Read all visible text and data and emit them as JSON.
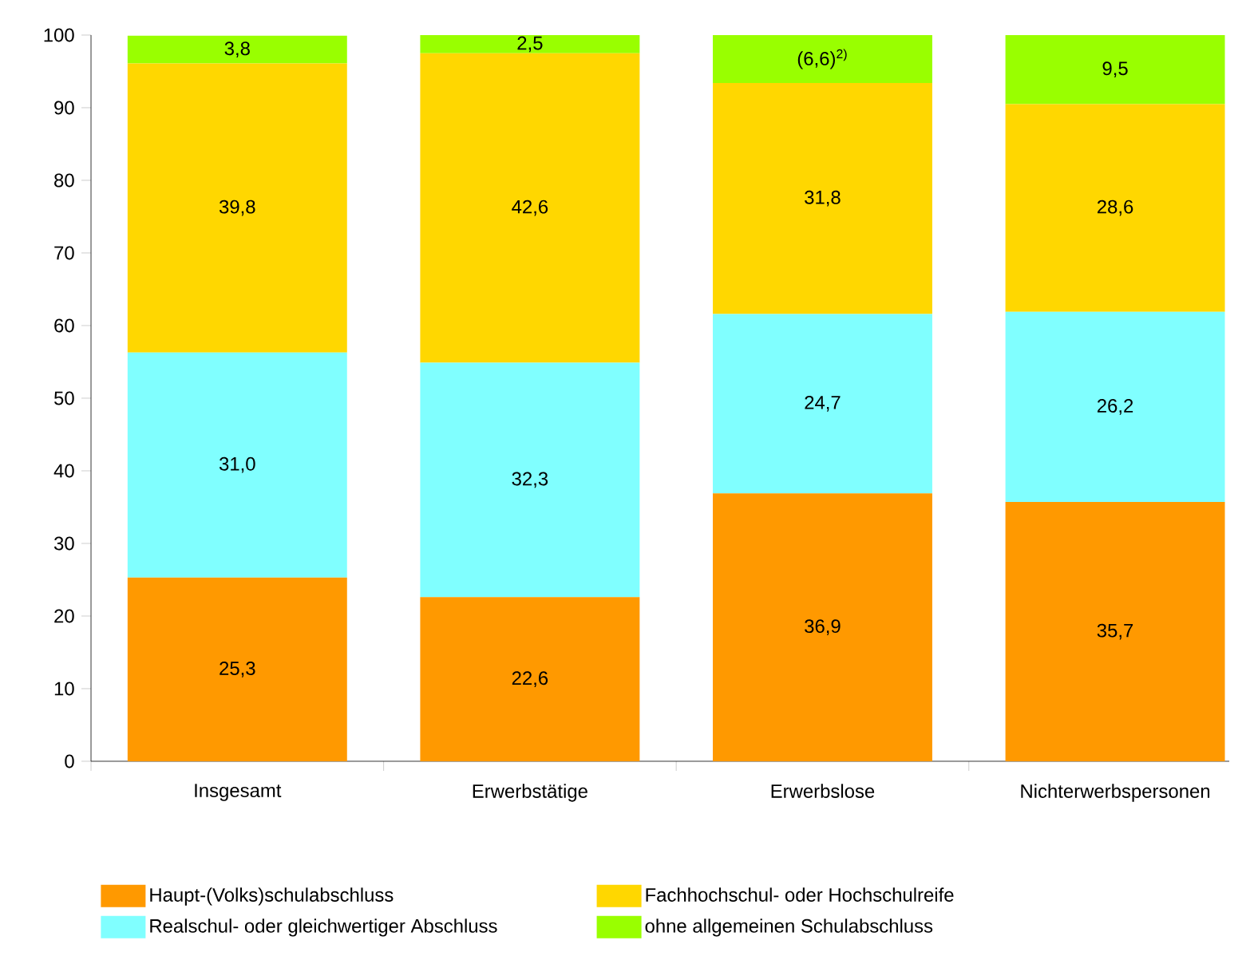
{
  "chart_data": {
    "type": "bar",
    "stacked": true,
    "categories": [
      "Insgesamt",
      "Erwerbstätige",
      "Erwerbslose",
      "Nichterwerbspersonen"
    ],
    "series": [
      {
        "name": "Haupt-(Volks)schulabschluss",
        "color": "#ff9900",
        "values": [
          25.3,
          22.6,
          36.9,
          35.7
        ],
        "value_labels": [
          "25,3",
          "22,6",
          "36,9",
          "35,7"
        ]
      },
      {
        "name": "Realschul- oder gleichwertiger Abschluss",
        "color": "#80ffff",
        "values": [
          31.0,
          32.3,
          24.7,
          26.2
        ],
        "value_labels": [
          "31,0",
          "32,3",
          "24,7",
          "26,2"
        ]
      },
      {
        "name": "Fachhochschul- oder Hochschulreife",
        "color": "#ffd700",
        "values": [
          39.8,
          42.6,
          31.8,
          28.6
        ],
        "value_labels": [
          "39,8",
          "42,6",
          "31,8",
          "28,6"
        ]
      },
      {
        "name": "ohne allgemeinen Schulabschluss",
        "color": "#99ff00",
        "values": [
          3.8,
          2.5,
          6.6,
          9.5
        ],
        "value_labels": [
          "3,8",
          "2,5",
          "(6,6)$^{2)}$",
          "9,5"
        ]
      }
    ],
    "ylim": [
      0,
      100
    ],
    "yticks": [
      0,
      10,
      20,
      30,
      40,
      50,
      60,
      70,
      80,
      90,
      100
    ],
    "grid": false,
    "legend": "bottom"
  }
}
